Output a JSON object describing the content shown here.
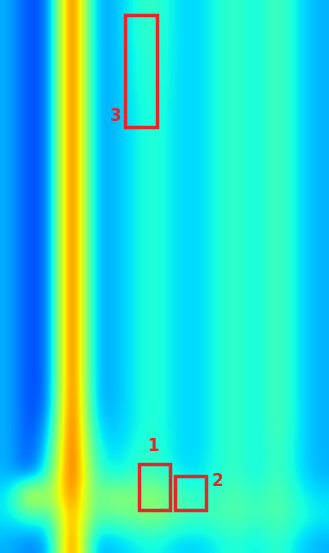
{
  "chart_data": {
    "type": "heatmap",
    "tick_labels": false,
    "zlim": [
      0,
      1
    ],
    "cells": [
      [
        0.3,
        0.18,
        0.25,
        0.95,
        0.3,
        0.3,
        0.38,
        0.42,
        0.35,
        0.33,
        0.38,
        0.42,
        0.36,
        0.45,
        0.35,
        0.3
      ],
      [
        0.3,
        0.18,
        0.25,
        0.95,
        0.3,
        0.3,
        0.38,
        0.42,
        0.35,
        0.33,
        0.38,
        0.42,
        0.36,
        0.45,
        0.35,
        0.3
      ],
      [
        0.3,
        0.18,
        0.25,
        0.95,
        0.3,
        0.3,
        0.37,
        0.41,
        0.35,
        0.33,
        0.38,
        0.42,
        0.36,
        0.45,
        0.35,
        0.3
      ],
      [
        0.3,
        0.18,
        0.25,
        0.95,
        0.3,
        0.3,
        0.37,
        0.41,
        0.35,
        0.33,
        0.38,
        0.42,
        0.36,
        0.45,
        0.35,
        0.3
      ],
      [
        0.3,
        0.18,
        0.25,
        0.95,
        0.3,
        0.3,
        0.36,
        0.4,
        0.35,
        0.33,
        0.38,
        0.42,
        0.36,
        0.45,
        0.35,
        0.3
      ],
      [
        0.3,
        0.18,
        0.25,
        0.95,
        0.3,
        0.3,
        0.36,
        0.4,
        0.35,
        0.33,
        0.38,
        0.42,
        0.36,
        0.45,
        0.35,
        0.3
      ],
      [
        0.3,
        0.18,
        0.25,
        0.95,
        0.3,
        0.3,
        0.36,
        0.4,
        0.35,
        0.33,
        0.38,
        0.42,
        0.36,
        0.45,
        0.35,
        0.3
      ],
      [
        0.3,
        0.18,
        0.25,
        0.95,
        0.3,
        0.3,
        0.36,
        0.4,
        0.35,
        0.33,
        0.38,
        0.42,
        0.36,
        0.45,
        0.35,
        0.3
      ],
      [
        0.3,
        0.18,
        0.25,
        0.95,
        0.3,
        0.3,
        0.36,
        0.4,
        0.35,
        0.33,
        0.38,
        0.42,
        0.36,
        0.45,
        0.35,
        0.3
      ],
      [
        0.3,
        0.18,
        0.25,
        0.95,
        0.3,
        0.3,
        0.36,
        0.4,
        0.35,
        0.33,
        0.38,
        0.42,
        0.36,
        0.45,
        0.35,
        0.3
      ],
      [
        0.3,
        0.18,
        0.25,
        0.95,
        0.3,
        0.3,
        0.36,
        0.4,
        0.35,
        0.33,
        0.38,
        0.42,
        0.36,
        0.45,
        0.35,
        0.3
      ],
      [
        0.3,
        0.18,
        0.25,
        0.95,
        0.3,
        0.3,
        0.36,
        0.4,
        0.35,
        0.33,
        0.38,
        0.42,
        0.36,
        0.45,
        0.35,
        0.3
      ],
      [
        0.3,
        0.18,
        0.25,
        0.95,
        0.3,
        0.3,
        0.36,
        0.4,
        0.35,
        0.33,
        0.38,
        0.42,
        0.36,
        0.45,
        0.35,
        0.3
      ],
      [
        0.3,
        0.18,
        0.25,
        0.95,
        0.3,
        0.3,
        0.36,
        0.4,
        0.35,
        0.33,
        0.38,
        0.42,
        0.36,
        0.45,
        0.35,
        0.3
      ],
      [
        0.3,
        0.18,
        0.25,
        0.95,
        0.3,
        0.3,
        0.36,
        0.4,
        0.35,
        0.33,
        0.38,
        0.42,
        0.36,
        0.45,
        0.35,
        0.3
      ],
      [
        0.3,
        0.18,
        0.25,
        0.95,
        0.3,
        0.3,
        0.36,
        0.4,
        0.35,
        0.33,
        0.38,
        0.42,
        0.36,
        0.45,
        0.35,
        0.3
      ],
      [
        0.3,
        0.18,
        0.25,
        0.95,
        0.3,
        0.3,
        0.36,
        0.4,
        0.35,
        0.33,
        0.38,
        0.42,
        0.36,
        0.45,
        0.35,
        0.3
      ],
      [
        0.3,
        0.18,
        0.26,
        0.95,
        0.31,
        0.3,
        0.36,
        0.4,
        0.35,
        0.33,
        0.38,
        0.42,
        0.36,
        0.45,
        0.35,
        0.3
      ],
      [
        0.3,
        0.18,
        0.32,
        0.94,
        0.35,
        0.31,
        0.36,
        0.4,
        0.35,
        0.33,
        0.38,
        0.42,
        0.36,
        0.45,
        0.35,
        0.3
      ],
      [
        0.3,
        0.19,
        0.38,
        0.92,
        0.4,
        0.33,
        0.38,
        0.41,
        0.35,
        0.33,
        0.38,
        0.42,
        0.36,
        0.44,
        0.35,
        0.3
      ],
      [
        0.3,
        0.2,
        0.45,
        0.9,
        0.45,
        0.35,
        0.4,
        0.42,
        0.36,
        0.34,
        0.38,
        0.42,
        0.36,
        0.44,
        0.35,
        0.3
      ],
      [
        0.35,
        0.7,
        0.5,
        0.85,
        0.45,
        0.55,
        0.5,
        0.55,
        0.45,
        0.4,
        0.42,
        0.45,
        0.4,
        0.46,
        0.38,
        0.34
      ],
      [
        0.35,
        0.4,
        0.4,
        0.8,
        0.45,
        0.45,
        0.48,
        0.5,
        0.45,
        0.42,
        0.43,
        0.45,
        0.42,
        0.45,
        0.4,
        0.36
      ],
      [
        0.3,
        0.25,
        0.3,
        0.9,
        0.3,
        0.32,
        0.35,
        0.38,
        0.34,
        0.33,
        0.36,
        0.4,
        0.35,
        0.42,
        0.34,
        0.3
      ]
    ],
    "annotations": [
      {
        "text": "1"
      },
      {
        "text": "2"
      },
      {
        "text": "3"
      }
    ]
  }
}
